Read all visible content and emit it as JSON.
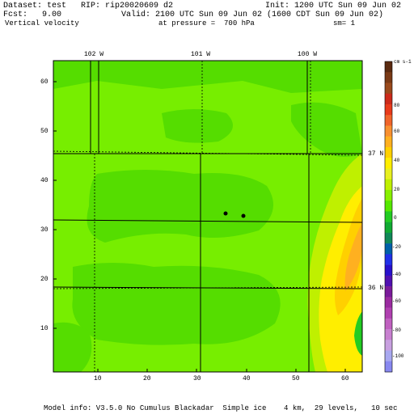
{
  "header": {
    "dataset_line": "Dataset: test   RIP: rip20020609 d2",
    "init_line": "Init: 1200 UTC Sun 09 Jun 02",
    "fcst_label": "Fcst:",
    "fcst_value": "9.00",
    "valid_line": "Valid: 2100 UTC Sun 09 Jun 02 (1600 CDT Sun 09 Jun 02)",
    "field_name": "Vertical velocity",
    "pressure_line": "at pressure =  700 hPa",
    "smoothing": "sm= 1"
  },
  "top_axis_labels": [
    "102 W",
    "101 W",
    "100 W"
  ],
  "right_axis_labels": [
    "37 N",
    "36 N"
  ],
  "y_ticks": [
    "60",
    "50",
    "40",
    "30",
    "20",
    "10"
  ],
  "x_ticks": [
    "10",
    "20",
    "30",
    "40",
    "50",
    "60"
  ],
  "colorbar": {
    "units": "cm s-1",
    "labels": [
      "80",
      "60",
      "40",
      "20",
      "0",
      "-20",
      "-40",
      "-60",
      "-80",
      "-100"
    ],
    "colors": [
      "#5a2a10",
      "#7a3a16",
      "#9a4a1c",
      "#cc2a1a",
      "#e83a1a",
      "#f0642a",
      "#f89030",
      "#ffb020",
      "#ffd000",
      "#ffee00",
      "#e8f020",
      "#bff000",
      "#88f000",
      "#55e800",
      "#22cc22",
      "#11aa33",
      "#108858",
      "#0060a8",
      "#2030e8",
      "#2810cc",
      "#5010b0",
      "#7a1a9a",
      "#9a2aa0",
      "#b040b0",
      "#c060c0",
      "#c880d0",
      "#c8a0e0",
      "#a8a8f0",
      "#8888f0"
    ]
  },
  "background_color": "#77ee00",
  "footer": "Model info: V3.5.0 No Cumulus Blackadar  Simple ice    4 km,  29 levels,   10 sec"
}
